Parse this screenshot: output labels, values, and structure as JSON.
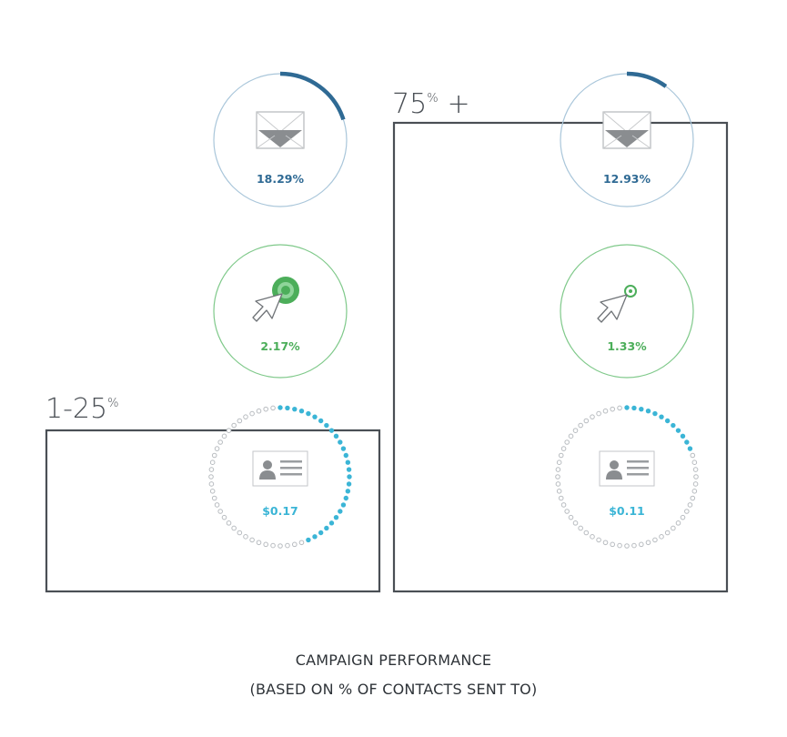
{
  "chart_data": {
    "type": "bar",
    "groups": [
      {
        "label": "1-25",
        "percent_sign": "%",
        "suffix": "",
        "relative_height": 0.3,
        "metrics": {
          "open_rate": {
            "display": "18.29%",
            "value": 18.29,
            "color": "#2f6a94"
          },
          "click_rate": {
            "display": "2.17%",
            "value": 2.17,
            "color": "#4cae5a"
          },
          "cost_per_contact": {
            "display": "$0.17",
            "value": 0.17,
            "color": "#3bb5d6"
          }
        }
      },
      {
        "label": "75",
        "percent_sign": "%",
        "suffix": "+",
        "relative_height": 1.0,
        "metrics": {
          "open_rate": {
            "display": "12.93%",
            "value": 12.93,
            "color": "#2f6a94"
          },
          "click_rate": {
            "display": "1.33%",
            "value": 1.33,
            "color": "#4cae5a"
          },
          "cost_per_contact": {
            "display": "$0.11",
            "value": 0.11,
            "color": "#3bb5d6"
          }
        }
      }
    ],
    "arc_fraction": {
      "open_rate": [
        0.2,
        0.1
      ],
      "cost_per_contact": [
        0.45,
        0.2
      ]
    },
    "title": "CAMPAIGN PERFORMANCE",
    "subtitle": "(BASED ON % OF CONTACTS SENT TO)"
  },
  "colors": {
    "frame": "#4a4f55",
    "open_ring": "#a9c6da",
    "click_ring": "#7fc98a",
    "dot_empty": "#b8bcc0"
  },
  "icons": [
    "envelope-icon",
    "cursor-click-icon",
    "contact-card-icon"
  ]
}
